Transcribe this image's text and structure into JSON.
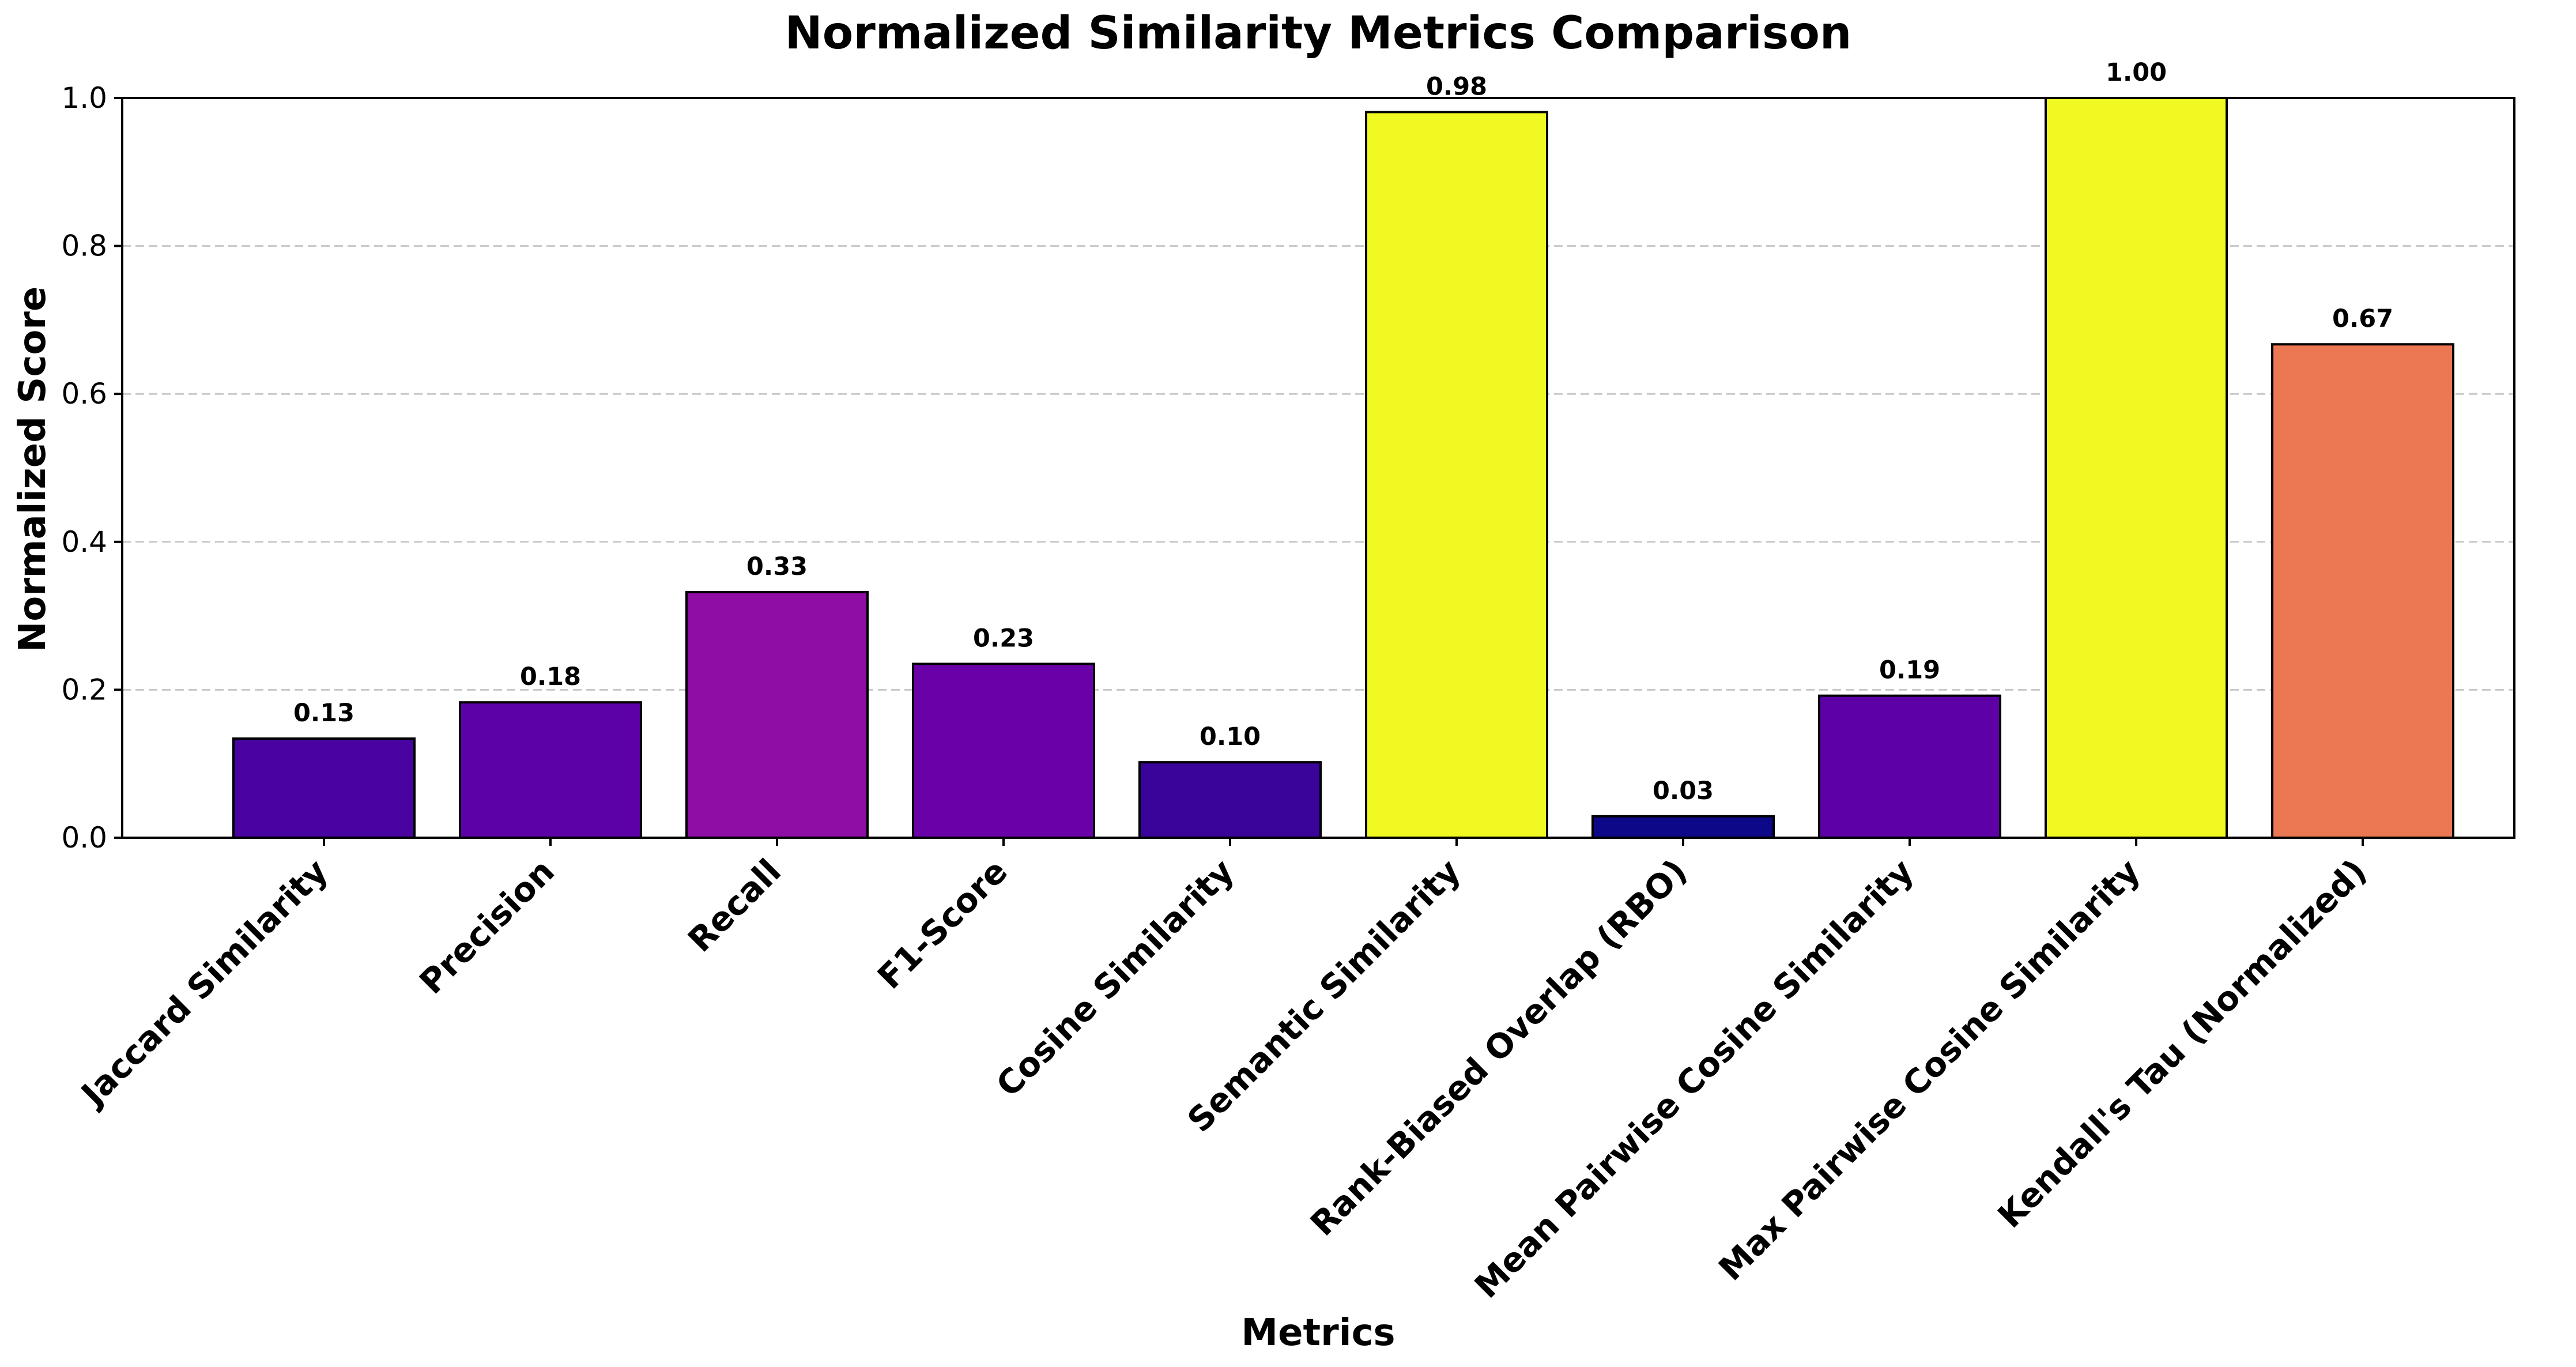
{
  "chart_data": {
    "type": "bar",
    "title": "Normalized Similarity Metrics Comparison",
    "xlabel": "Metrics",
    "ylabel": "Normalized Score",
    "ylim": [
      0,
      1.0
    ],
    "yticks": [
      "0.0",
      "0.2",
      "0.4",
      "0.6",
      "0.8",
      "1.0"
    ],
    "grid": "y-dashed",
    "legend": "none",
    "categories": [
      "Jaccard Similarity",
      "Precision",
      "Recall",
      "F1-Score",
      "Cosine Similarity",
      "Semantic Similarity",
      "Rank-Biased Overlap (RBO)",
      "Mean Pairwise Cosine Similarity",
      "Max Pairwise Cosine Similarity",
      "Kendall's Tau (Normalized)"
    ],
    "values": [
      0.134,
      0.183,
      0.332,
      0.235,
      0.102,
      0.981,
      0.029,
      0.192,
      1.0,
      0.667
    ],
    "value_labels": [
      "0.13",
      "0.18",
      "0.33",
      "0.23",
      "0.10",
      "0.98",
      "0.03",
      "0.19",
      "1.00",
      "0.67"
    ],
    "colors": [
      "#4903a0",
      "#5c01a6",
      "#8f0da4",
      "#6a00a8",
      "#3a049a",
      "#f0f921",
      "#0d0887",
      "#5d01a6",
      "#f0f921",
      "#ec7853"
    ]
  }
}
